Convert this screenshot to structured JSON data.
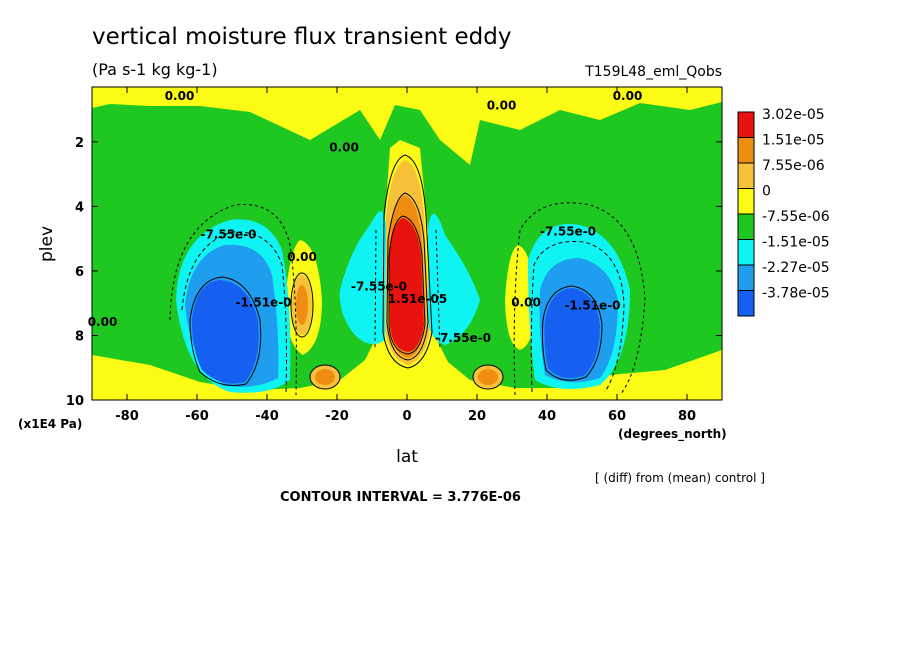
{
  "chart_data": {
    "type": "contour",
    "title": "vertical moisture flux transient eddy",
    "units": "(Pa s-1 kg kg-1)",
    "run_label": "T159L48_eml_Qobs",
    "xlabel": "lat",
    "xunits": "(degrees_north)",
    "ylabel": "plev",
    "yunits": "(x1E4 Pa)",
    "xlim": [
      -90,
      90
    ],
    "ylim": [
      10,
      0.3
    ],
    "x_ticks": [
      -80,
      -60,
      -40,
      -20,
      0,
      20,
      40,
      60,
      80
    ],
    "y_ticks": [
      2,
      4,
      6,
      8,
      10
    ],
    "contour_interval_text": "CONTOUR INTERVAL = 3.776E-06",
    "comparison_note": "[ (diff) from (mean) control ]",
    "legend": [
      {
        "label": "3.02e-05",
        "color": "#e8120f"
      },
      {
        "label": "1.51e-05",
        "color": "#ef8d13"
      },
      {
        "label": "7.55e-06",
        "color": "#f7c23a"
      },
      {
        "label": "0",
        "color": "#fbfb16"
      },
      {
        "label": "-7.55e-06",
        "color": "#1ec821"
      },
      {
        "label": "-1.51e-05",
        "color": "#0ff3f3"
      },
      {
        "label": "-2.27e-05",
        "color": "#1f9ef0"
      },
      {
        "label": "-3.78e-05",
        "color": "#1560f0"
      }
    ],
    "contour_labels": [
      {
        "text": "0.00",
        "x": -65,
        "y": 0.7
      },
      {
        "text": "0.00",
        "x": 27,
        "y": 1.0
      },
      {
        "text": "0.00",
        "x": 63,
        "y": 0.7
      },
      {
        "text": "0.00",
        "x": -30,
        "y": 5.7
      },
      {
        "text": "0.00",
        "x": 34,
        "y": 7.1
      },
      {
        "text": "0.00",
        "x": -87,
        "y": 7.7
      },
      {
        "text": "0.00",
        "x": -18,
        "y": 2.3
      },
      {
        "text": "-7.55e-0",
        "x": -51,
        "y": 5.0
      },
      {
        "text": "-7.55e-0",
        "x": 46,
        "y": 4.9
      },
      {
        "text": "-1.51e-0",
        "x": -41,
        "y": 7.1
      },
      {
        "text": "-1.51e-0",
        "x": 53,
        "y": 7.2
      },
      {
        "text": "1.51e-05",
        "x": 3,
        "y": 7.0
      },
      {
        "text": "-7.55e-0",
        "x": 16,
        "y": 8.2
      },
      {
        "text": "-7.55e-0",
        "x": -8,
        "y": 6.6
      }
    ]
  }
}
